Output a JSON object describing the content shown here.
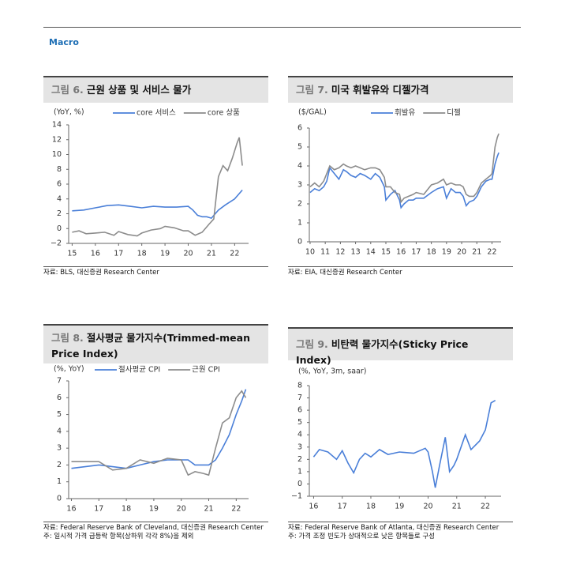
{
  "header": {
    "section": "Macro"
  },
  "chart_data": [
    {
      "type": "line",
      "figure_label": "그림 6.",
      "title": "근원 상품 및 서비스 물가",
      "unit_label": "(YoY, %)",
      "source": "자료: BLS, 대신증권 Research Center",
      "xlim": [
        14.85,
        22.6
      ],
      "xticks": [
        15,
        16,
        17,
        18,
        19,
        20,
        21,
        22
      ],
      "ylim": [
        -2,
        14
      ],
      "yticks": [
        {
          "value": -2,
          "label": "−2"
        },
        0,
        2,
        4,
        6,
        8,
        10,
        12,
        14
      ],
      "series": [
        {
          "name": "core 서비스",
          "color": "#4a7fd8",
          "x": [
            15,
            15.5,
            16,
            16.5,
            17,
            17.5,
            18,
            18.5,
            19,
            19.5,
            20,
            20.2,
            20.4,
            20.6,
            20.8,
            21,
            21.3,
            21.6,
            22,
            22.33
          ],
          "values": [
            2.4,
            2.5,
            2.8,
            3.1,
            3.2,
            3.0,
            2.8,
            3.0,
            2.9,
            2.9,
            3.0,
            2.5,
            1.8,
            1.6,
            1.6,
            1.4,
            2.5,
            3.2,
            4.0,
            5.2
          ]
        },
        {
          "name": "core 상품",
          "color": "#8c8c8c",
          "x": [
            15,
            15.3,
            15.6,
            16,
            16.4,
            16.8,
            17,
            17.4,
            17.8,
            18,
            18.4,
            18.8,
            19,
            19.4,
            19.8,
            20,
            20.3,
            20.6,
            20.9,
            21.1,
            21.3,
            21.5,
            21.7,
            21.9,
            22.1,
            22.2,
            22.33
          ],
          "values": [
            -0.5,
            -0.3,
            -0.7,
            -0.6,
            -0.5,
            -0.9,
            -0.4,
            -0.8,
            -1.0,
            -0.6,
            -0.2,
            0.0,
            0.3,
            0.1,
            -0.3,
            -0.3,
            -0.9,
            -0.5,
            0.6,
            1.3,
            7.0,
            8.5,
            7.8,
            9.5,
            11.5,
            12.3,
            8.5
          ]
        }
      ]
    },
    {
      "type": "line",
      "figure_label": "그림 7.",
      "title": "미국 휘발유와 디젤가격",
      "unit_label": "($/GAL)",
      "source": "자료: EIA, 대신증권 Research Center",
      "xlim": [
        9.95,
        22.6
      ],
      "xticks": [
        10,
        11,
        12,
        13,
        14,
        15,
        16,
        17,
        18,
        19,
        20,
        21,
        22
      ],
      "ylim": [
        0,
        6
      ],
      "yticks": [
        0,
        1,
        2,
        3,
        4,
        5,
        6
      ],
      "x": [
        10,
        10.3,
        10.6,
        10.9,
        11.1,
        11.3,
        11.6,
        11.9,
        12.2,
        12.4,
        12.7,
        13,
        13.3,
        13.6,
        14,
        14.3,
        14.6,
        14.9,
        15,
        15.3,
        15.6,
        15.9,
        16,
        16.2,
        16.5,
        16.8,
        17,
        17.5,
        18,
        18.4,
        18.8,
        19,
        19.3,
        19.6,
        19.9,
        20.1,
        20.3,
        20.5,
        20.8,
        21,
        21.3,
        21.6,
        21.9,
        22,
        22.2,
        22.35,
        22.45
      ],
      "series": [
        {
          "name": "휘발유",
          "color": "#4a7fd8",
          "values": [
            2.6,
            2.8,
            2.7,
            2.9,
            3.2,
            3.9,
            3.6,
            3.3,
            3.8,
            3.7,
            3.5,
            3.4,
            3.6,
            3.5,
            3.3,
            3.6,
            3.4,
            2.9,
            2.2,
            2.5,
            2.7,
            2.2,
            1.8,
            2.0,
            2.2,
            2.2,
            2.3,
            2.3,
            2.6,
            2.8,
            2.9,
            2.3,
            2.8,
            2.6,
            2.6,
            2.4,
            1.9,
            2.1,
            2.2,
            2.4,
            2.9,
            3.2,
            3.3,
            3.3,
            4.1,
            4.5,
            4.7
          ]
        },
        {
          "name": "디젤",
          "color": "#8c8c8c",
          "values": [
            2.9,
            3.1,
            2.9,
            3.2,
            3.6,
            4.0,
            3.8,
            3.9,
            4.1,
            4.0,
            3.9,
            4.0,
            3.9,
            3.8,
            3.9,
            3.9,
            3.8,
            3.4,
            2.9,
            2.9,
            2.6,
            2.5,
            2.1,
            2.3,
            2.4,
            2.5,
            2.6,
            2.5,
            3.0,
            3.1,
            3.3,
            3.0,
            3.1,
            3.0,
            3.0,
            2.9,
            2.5,
            2.4,
            2.4,
            2.6,
            3.1,
            3.3,
            3.5,
            3.6,
            5.0,
            5.5,
            5.7
          ]
        }
      ]
    },
    {
      "type": "line",
      "figure_label": "그림 8.",
      "title": "절사평균 물가지수(Trimmed-mean Price Index)",
      "unit_label": "(%, YoY)",
      "source": "자료: Federal Reserve Bank of Cleveland, 대신증권 Research Center",
      "note": "주: 일시적 가격 급등락 항목(상하위 각각 8%)을 제외",
      "xlim": [
        15.9,
        22.45
      ],
      "xticks": [
        16,
        17,
        18,
        19,
        20,
        21,
        22
      ],
      "ylim": [
        0,
        7
      ],
      "yticks": [
        0,
        1,
        2,
        3,
        4,
        5,
        6,
        7
      ],
      "x": [
        16,
        16.5,
        17,
        17.5,
        18,
        18.5,
        19,
        19.5,
        20,
        20.25,
        20.5,
        20.8,
        21,
        21.25,
        21.5,
        21.75,
        22,
        22.2,
        22.35
      ],
      "series": [
        {
          "name": "절사평균 CPI",
          "color": "#4a7fd8",
          "values": [
            1.8,
            1.9,
            2.0,
            1.9,
            1.8,
            2.0,
            2.2,
            2.3,
            2.3,
            2.3,
            2.0,
            2.0,
            2.0,
            2.3,
            3.0,
            3.8,
            5.0,
            5.8,
            6.5
          ]
        },
        {
          "name": "근원 CPI",
          "color": "#8c8c8c",
          "values": [
            2.2,
            2.2,
            2.2,
            1.7,
            1.8,
            2.3,
            2.1,
            2.4,
            2.3,
            1.4,
            1.6,
            1.5,
            1.4,
            3.0,
            4.5,
            4.8,
            6.0,
            6.4,
            6.0
          ]
        }
      ]
    },
    {
      "type": "line",
      "figure_label": "그림 9.",
      "title": "비탄력 물가지수(Sticky Price Index)",
      "unit_label": "(%, YoY, 3m, saar)",
      "source": "자료: Federal Reserve Bank of Atlanta, 대신증권 Research Center",
      "note": "주: 가격 조정 빈도가 상대적으로 낮은 항목들로 구성",
      "xlim": [
        15.85,
        22.55
      ],
      "xticks": [
        16,
        17,
        18,
        19,
        20,
        21,
        22
      ],
      "ylim": [
        -1,
        8
      ],
      "yticks": [
        {
          "value": -1,
          "label": "−1"
        },
        0,
        1,
        2,
        3,
        4,
        5,
        6,
        7,
        8
      ],
      "x": [
        16,
        16.2,
        16.5,
        16.8,
        17,
        17.2,
        17.4,
        17.6,
        17.8,
        18,
        18.3,
        18.6,
        19,
        19.5,
        19.9,
        20,
        20.15,
        20.25,
        20.4,
        20.6,
        20.75,
        20.9,
        21,
        21.3,
        21.5,
        21.8,
        22,
        22.2,
        22.35
      ],
      "series": [
        {
          "color": "#4a7fd8",
          "values": [
            2.2,
            2.8,
            2.6,
            2.0,
            2.7,
            1.7,
            0.9,
            2.0,
            2.5,
            2.2,
            2.8,
            2.4,
            2.6,
            2.5,
            2.9,
            2.6,
            1.0,
            -0.3,
            1.5,
            3.8,
            1.0,
            1.5,
            2.0,
            4.0,
            2.8,
            3.5,
            4.4,
            6.6,
            6.8
          ]
        }
      ]
    }
  ]
}
